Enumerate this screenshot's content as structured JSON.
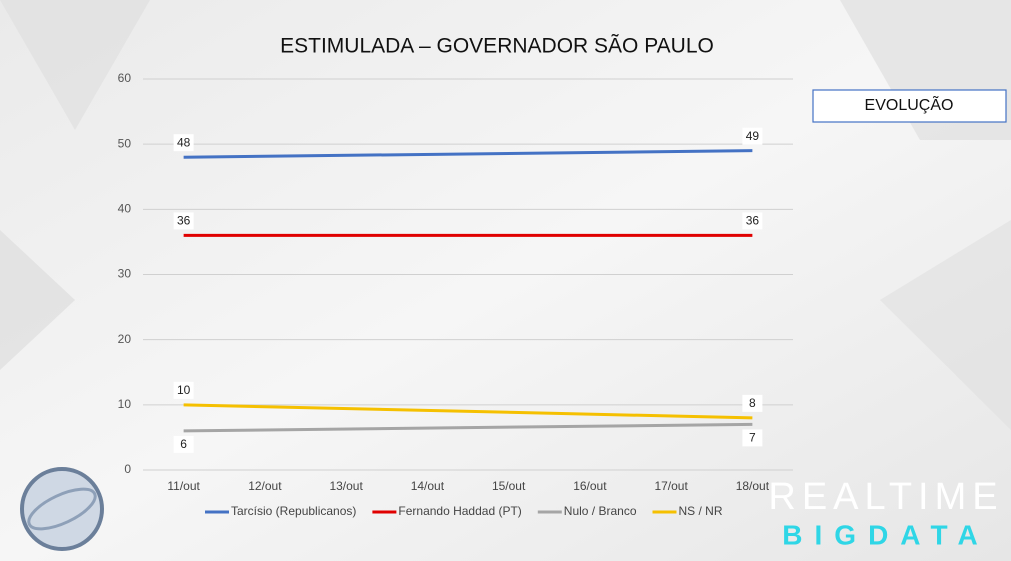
{
  "chart_data": {
    "type": "line",
    "title": "ESTIMULADA – GOVERNADOR SÃO PAULO",
    "categories": [
      "11/out",
      "12/out",
      "13/out",
      "14/out",
      "15/out",
      "16/out",
      "17/out",
      "18/out"
    ],
    "series": [
      {
        "name": "Tarcísio (Republicanos)",
        "color": "#4472c4",
        "values": [
          48,
          null,
          null,
          null,
          null,
          null,
          null,
          49
        ]
      },
      {
        "name": "Fernando Haddad (PT)",
        "color": "#e00000",
        "values": [
          36,
          null,
          null,
          null,
          null,
          null,
          null,
          36
        ]
      },
      {
        "name": "Nulo / Branco",
        "color": "#a5a5a5",
        "values": [
          6,
          null,
          null,
          null,
          null,
          null,
          null,
          7
        ]
      },
      {
        "name": "NS / NR",
        "color": "#f5c000",
        "values": [
          10,
          null,
          null,
          null,
          null,
          null,
          null,
          8
        ]
      }
    ],
    "span_gaps": true,
    "ylim": [
      0,
      60
    ],
    "yticks": [
      0,
      10,
      20,
      30,
      40,
      50,
      60
    ],
    "grid": true,
    "legend": "bottom"
  },
  "badge": "EVOLUÇÃO",
  "logo": {
    "line1": "REALTIME",
    "line2": "BIGDATA"
  }
}
